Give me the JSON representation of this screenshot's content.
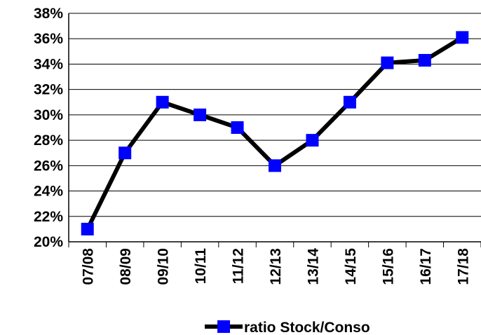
{
  "chart_data": {
    "type": "line",
    "title": "",
    "xlabel": "",
    "ylabel": "",
    "categories": [
      "07/08",
      "08/09",
      "09/10",
      "10/11",
      "11/12",
      "12/13",
      "13/14",
      "14/15",
      "15/16",
      "16/17",
      "17/18"
    ],
    "series": [
      {
        "name": "ratio Stock/Conso",
        "values": [
          0.21,
          0.27,
          0.31,
          0.3,
          0.29,
          0.26,
          0.28,
          0.31,
          0.341,
          0.343,
          0.361
        ],
        "line_color": "#000000",
        "marker_color": "#0000FF",
        "marker": "square"
      }
    ],
    "ylim": [
      0.2,
      0.38
    ],
    "yticks": [
      0.2,
      0.22,
      0.24,
      0.26,
      0.28,
      0.3,
      0.32,
      0.34,
      0.36,
      0.38
    ],
    "ytick_labels": [
      "20%",
      "22%",
      "24%",
      "26%",
      "28%",
      "30%",
      "32%",
      "34%",
      "36%",
      "38%"
    ],
    "grid": true,
    "legend_position": "bottom-center"
  }
}
